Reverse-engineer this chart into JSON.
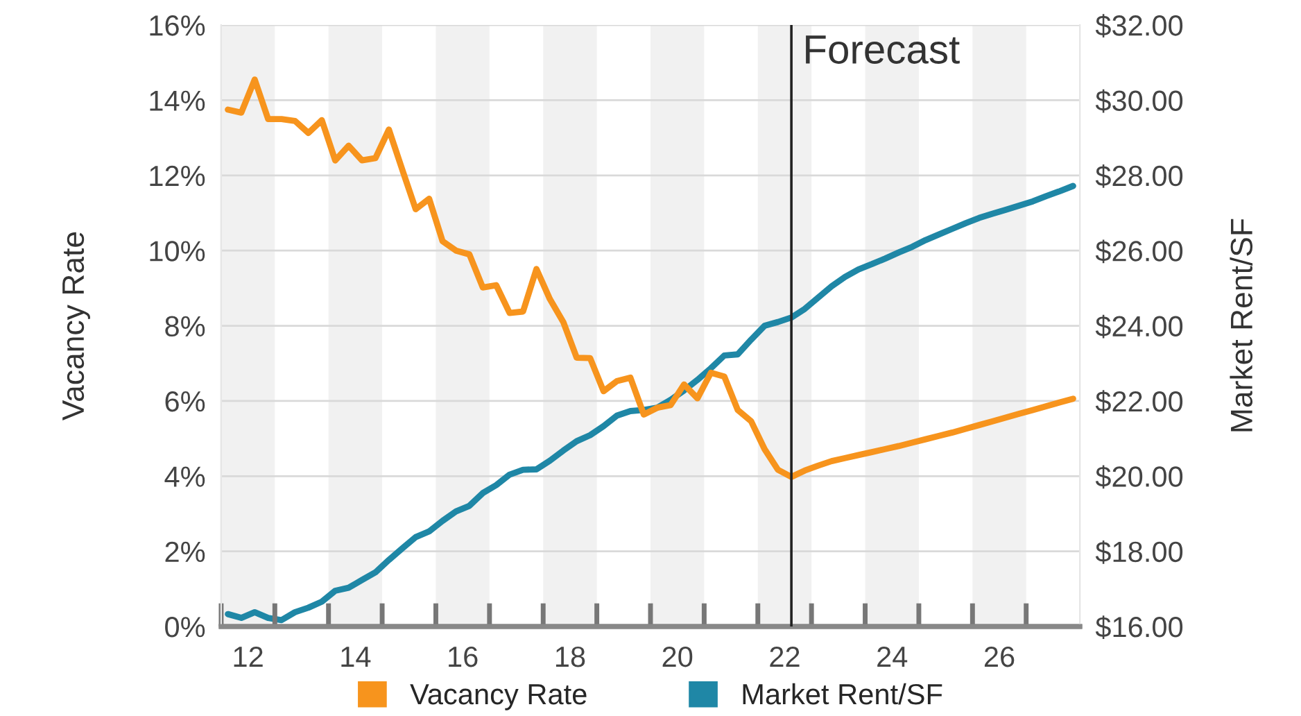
{
  "chart_data": {
    "type": "line",
    "x": [
      11.625,
      11.875,
      12.125,
      12.375,
      12.625,
      12.875,
      13.125,
      13.375,
      13.625,
      13.875,
      14.125,
      14.375,
      14.625,
      14.875,
      15.125,
      15.375,
      15.625,
      15.875,
      16.125,
      16.375,
      16.625,
      16.875,
      17.125,
      17.375,
      17.625,
      17.875,
      18.125,
      18.375,
      18.625,
      18.875,
      19.125,
      19.375,
      19.625,
      19.875,
      20.125,
      20.375,
      20.625,
      20.875,
      21.125,
      21.375,
      21.625,
      21.875,
      22.125,
      22.375,
      22.625,
      22.875,
      23.125,
      23.375,
      23.625,
      23.875,
      24.125,
      24.375,
      24.625,
      24.875,
      25.125,
      25.375,
      25.625,
      25.875,
      26.125,
      26.375,
      26.625,
      26.875,
      27.125,
      27.375
    ],
    "series": [
      {
        "name": "Vacancy Rate",
        "color": "#f7941d",
        "values": [
          13.75,
          13.67,
          14.55,
          13.5,
          13.5,
          13.45,
          13.13,
          13.47,
          12.4,
          12.79,
          12.4,
          12.46,
          13.22,
          12.15,
          11.1,
          11.38,
          10.25,
          10.0,
          9.9,
          9.02,
          9.08,
          8.34,
          8.38,
          9.51,
          8.71,
          8.1,
          7.15,
          7.14,
          6.26,
          6.53,
          6.62,
          5.64,
          5.82,
          5.89,
          6.44,
          6.07,
          6.75,
          6.65,
          5.76,
          5.46,
          4.72,
          4.17,
          3.98,
          4.15,
          4.28,
          4.4,
          4.48,
          4.56,
          4.64,
          4.72,
          4.8,
          4.89,
          4.98,
          5.07,
          5.16,
          5.26,
          5.36,
          5.46,
          5.56,
          5.66,
          5.76,
          5.86,
          5.96,
          6.06
        ]
      },
      {
        "name": "Market Rent/SF",
        "color": "#1f87a6",
        "axis": "y2",
        "values": [
          16.33,
          16.23,
          16.38,
          16.23,
          16.17,
          16.38,
          16.5,
          16.66,
          16.95,
          17.03,
          17.24,
          17.44,
          17.77,
          18.08,
          18.38,
          18.53,
          18.81,
          19.06,
          19.21,
          19.55,
          19.76,
          20.04,
          20.17,
          20.18,
          20.41,
          20.68,
          20.93,
          21.09,
          21.33,
          21.61,
          21.73,
          21.76,
          21.82,
          22.03,
          22.28,
          22.56,
          22.87,
          23.21,
          23.24,
          23.63,
          24.0,
          24.1,
          24.22,
          24.45,
          24.75,
          25.05,
          25.3,
          25.5,
          25.64,
          25.79,
          25.95,
          26.1,
          26.28,
          26.43,
          26.58,
          26.73,
          26.87,
          26.98,
          27.09,
          27.2,
          27.31,
          27.45,
          27.58,
          27.72
        ]
      }
    ],
    "ylabel": "Vacancy Rate",
    "y2label": "Market Rent/SF",
    "xlim": [
      11.5,
      27.5
    ],
    "xticks": [
      12,
      14,
      16,
      18,
      20,
      22,
      24,
      26
    ],
    "ylim": [
      0,
      16
    ],
    "yticks": [
      {
        "value": 0,
        "label": "0%"
      },
      {
        "value": 2,
        "label": "2%"
      },
      {
        "value": 4,
        "label": "4%"
      },
      {
        "value": 6,
        "label": "6%"
      },
      {
        "value": 8,
        "label": "8%"
      },
      {
        "value": 10,
        "label": "10%"
      },
      {
        "value": 12,
        "label": "12%"
      },
      {
        "value": 14,
        "label": "14%"
      },
      {
        "value": 16,
        "label": "16%"
      }
    ],
    "y2lim": [
      16,
      32
    ],
    "y2ticks": [
      {
        "value": 16,
        "label": "$16.00"
      },
      {
        "value": 18,
        "label": "$18.00"
      },
      {
        "value": 20,
        "label": "$20.00"
      },
      {
        "value": 22,
        "label": "$22.00"
      },
      {
        "value": 24,
        "label": "$24.00"
      },
      {
        "value": 26,
        "label": "$26.00"
      },
      {
        "value": 28,
        "label": "$28.00"
      },
      {
        "value": 30,
        "label": "$30.00"
      },
      {
        "value": 32,
        "label": "$32.00"
      }
    ],
    "ref_lines": [
      {
        "axis": "x",
        "value": 22.125,
        "label": "Forecast",
        "color": "#222222"
      }
    ],
    "bands": [
      {
        "axis": "x",
        "from": 11.5,
        "to": 12.5,
        "color": "#f1f1f1"
      },
      {
        "axis": "x",
        "from": 13.5,
        "to": 14.5,
        "color": "#f1f1f1"
      },
      {
        "axis": "x",
        "from": 15.5,
        "to": 16.5,
        "color": "#f1f1f1"
      },
      {
        "axis": "x",
        "from": 17.5,
        "to": 18.5,
        "color": "#f1f1f1"
      },
      {
        "axis": "x",
        "from": 19.5,
        "to": 20.5,
        "color": "#f1f1f1"
      },
      {
        "axis": "x",
        "from": 21.5,
        "to": 22.5,
        "color": "#f1f1f1"
      },
      {
        "axis": "x",
        "from": 23.5,
        "to": 24.5,
        "color": "#f1f1f1"
      },
      {
        "axis": "x",
        "from": 25.5,
        "to": 26.5,
        "color": "#f1f1f1"
      }
    ],
    "grid": "y",
    "legend": "bottom",
    "marker": "none",
    "line_style": "solid"
  }
}
